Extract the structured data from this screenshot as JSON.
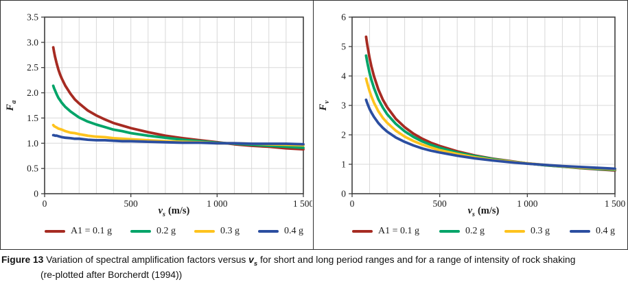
{
  "caption": {
    "label": "Figure 13",
    "part1": " Variation of spectral amplification factors versus ",
    "var": "v",
    "var_sub": "s",
    "part2": " for short and long period ranges and for a range of intensity of rock shaking",
    "line2": "(re-plotted after Borcherdt (1994))"
  },
  "colors": {
    "series_red": "#a62b22",
    "series_green": "#00a468",
    "series_yellow": "#fec31e",
    "series_blue": "#2b4ea0",
    "grid": "#d8d8d8",
    "axis": "#3d3d3d",
    "text": "#1a1a1a"
  },
  "chart_data": [
    {
      "type": "line",
      "title": "",
      "xlabel": "vs (m/s)",
      "ylabel": "Fa",
      "xlabel_var": "v",
      "xlabel_sub": "s",
      "xlabel_unit": "(m/s)",
      "ylabel_var": "F",
      "ylabel_sub": "a",
      "xlim": [
        0,
        1500
      ],
      "ylim": [
        0,
        3.5
      ],
      "xticks": [
        0,
        500,
        1000,
        1500
      ],
      "xtick_labels": [
        "0",
        "500",
        "1 000",
        "1 500"
      ],
      "yticks": [
        0,
        0.5,
        1,
        1.5,
        2,
        2.5,
        3,
        3.5
      ],
      "ytick_labels": [
        "0",
        "0.5",
        "1.0",
        "1.5",
        "2.0",
        "2.5",
        "3.0",
        "3.5"
      ],
      "x_minor_grid_step": 100,
      "grid": true,
      "legend_position": "bottom",
      "x": [
        50,
        55,
        60,
        70,
        80,
        90,
        100,
        120,
        150,
        175,
        200,
        250,
        300,
        350,
        400,
        450,
        500,
        600,
        700,
        800,
        900,
        1000,
        1100,
        1200,
        1300,
        1400,
        1500
      ],
      "series": [
        {
          "name": "A1 = 0.1 g",
          "color": "#a62b22",
          "values": [
            2.9,
            2.81,
            2.72,
            2.58,
            2.46,
            2.36,
            2.28,
            2.14,
            1.98,
            1.87,
            1.79,
            1.65,
            1.55,
            1.47,
            1.4,
            1.35,
            1.3,
            1.22,
            1.15,
            1.1,
            1.06,
            1.02,
            0.98,
            0.95,
            0.93,
            0.9,
            0.88
          ]
        },
        {
          "name": "0.2 g",
          "color": "#00a468",
          "values": [
            2.14,
            2.09,
            2.05,
            1.97,
            1.9,
            1.85,
            1.8,
            1.72,
            1.63,
            1.57,
            1.51,
            1.43,
            1.37,
            1.32,
            1.27,
            1.24,
            1.2,
            1.15,
            1.11,
            1.07,
            1.04,
            1.01,
            0.99,
            0.97,
            0.95,
            0.93,
            0.91
          ]
        },
        {
          "name": "0.3 g",
          "color": "#fec31e",
          "values": [
            1.36,
            1.34,
            1.33,
            1.31,
            1.29,
            1.28,
            1.27,
            1.24,
            1.21,
            1.2,
            1.18,
            1.15,
            1.13,
            1.12,
            1.1,
            1.09,
            1.08,
            1.06,
            1.04,
            1.03,
            1.02,
            1.0,
            1.0,
            0.99,
            0.98,
            0.97,
            0.96
          ]
        },
        {
          "name": "0.4 g",
          "color": "#2b4ea0",
          "values": [
            1.16,
            1.16,
            1.15,
            1.15,
            1.14,
            1.13,
            1.12,
            1.11,
            1.1,
            1.09,
            1.09,
            1.07,
            1.06,
            1.06,
            1.05,
            1.04,
            1.04,
            1.03,
            1.02,
            1.01,
            1.01,
            1.0,
            1.0,
            0.99,
            0.99,
            0.99,
            0.98
          ]
        }
      ]
    },
    {
      "type": "line",
      "title": "",
      "xlabel": "vs (m/s)",
      "ylabel": "Fv",
      "xlabel_var": "v",
      "xlabel_sub": "s",
      "xlabel_unit": "(m/s)",
      "ylabel_var": "F",
      "ylabel_sub": "v",
      "xlim": [
        0,
        1500
      ],
      "ylim": [
        0,
        6
      ],
      "xticks": [
        0,
        500,
        1000,
        1500
      ],
      "xtick_labels": [
        "0",
        "500",
        "1 000",
        "1 500"
      ],
      "yticks": [
        0,
        1,
        2,
        3,
        4,
        5,
        6
      ],
      "ytick_labels": [
        "0",
        "1",
        "2",
        "3",
        "4",
        "5",
        "6"
      ],
      "x_minor_grid_step": 100,
      "grid": true,
      "legend_position": "bottom",
      "x": [
        80,
        85,
        90,
        100,
        110,
        125,
        150,
        175,
        200,
        250,
        300,
        350,
        400,
        450,
        500,
        600,
        700,
        800,
        900,
        1000,
        1100,
        1200,
        1300,
        1400,
        1500
      ],
      "series": [
        {
          "name": "A1 = 0.1 g",
          "color": "#a62b22",
          "values": [
            5.33,
            5.12,
            4.94,
            4.61,
            4.33,
            3.99,
            3.54,
            3.2,
            2.94,
            2.54,
            2.26,
            2.04,
            1.87,
            1.73,
            1.62,
            1.44,
            1.3,
            1.19,
            1.11,
            1.03,
            0.97,
            0.92,
            0.87,
            0.83,
            0.79
          ]
        },
        {
          "name": "0.2 g",
          "color": "#00a468",
          "values": [
            4.69,
            4.52,
            4.37,
            4.1,
            3.87,
            3.59,
            3.21,
            2.93,
            2.7,
            2.37,
            2.12,
            1.93,
            1.78,
            1.66,
            1.56,
            1.4,
            1.28,
            1.18,
            1.1,
            1.03,
            0.97,
            0.92,
            0.88,
            0.84,
            0.81
          ]
        },
        {
          "name": "0.3 g",
          "color": "#fec31e",
          "values": [
            3.91,
            3.79,
            3.68,
            3.48,
            3.31,
            3.09,
            2.8,
            2.58,
            2.41,
            2.14,
            1.94,
            1.79,
            1.67,
            1.57,
            1.48,
            1.35,
            1.24,
            1.15,
            1.09,
            1.03,
            0.98,
            0.93,
            0.89,
            0.86,
            0.83
          ]
        },
        {
          "name": "0.4 g",
          "color": "#2b4ea0",
          "values": [
            3.19,
            3.1,
            3.02,
            2.88,
            2.76,
            2.61,
            2.4,
            2.24,
            2.11,
            1.91,
            1.76,
            1.64,
            1.54,
            1.46,
            1.4,
            1.29,
            1.2,
            1.13,
            1.07,
            1.02,
            0.98,
            0.94,
            0.91,
            0.88,
            0.85
          ]
        }
      ]
    }
  ]
}
